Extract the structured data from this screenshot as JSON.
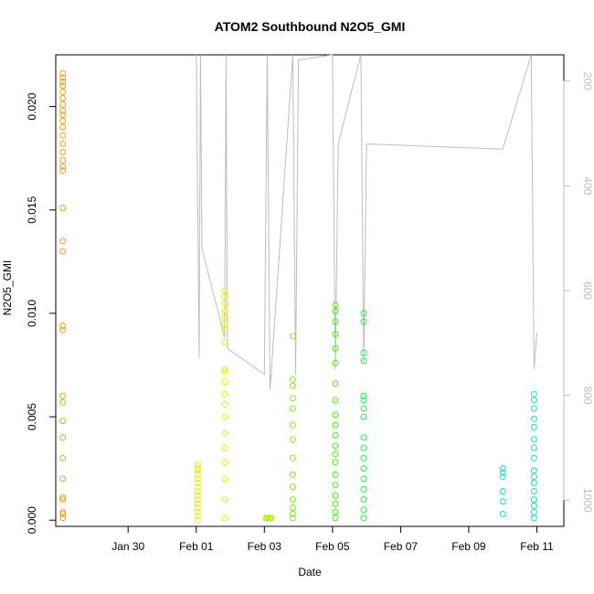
{
  "chart_data": {
    "type": "scatter",
    "title": "ATOM2 Southbound N2O5_GMI",
    "xlabel": "Date",
    "ylabel": "N2O5_GMI",
    "xlim": [
      "2017-01-27T21:00",
      "2017-02-11T19:00"
    ],
    "ylim": [
      -0.0003,
      0.0225
    ],
    "x_ticks": [
      "Jan 30",
      "Feb 01",
      "Feb 03",
      "Feb 05",
      "Feb 07",
      "Feb 09",
      "Feb 11"
    ],
    "x_tick_dates": [
      "2017-01-30",
      "2017-02-01",
      "2017-02-03",
      "2017-02-05",
      "2017-02-07",
      "2017-02-09",
      "2017-02-11"
    ],
    "y_ticks": [
      0.0,
      0.005,
      0.01,
      0.015,
      0.02
    ],
    "y_tick_labels": [
      "0.000",
      "0.005",
      "0.010",
      "0.015",
      "0.020"
    ],
    "y2_ticks": [
      200,
      400,
      600,
      800,
      1000
    ],
    "y2_reversed": true,
    "y2_lim": [
      1050,
      150
    ],
    "grid": false,
    "point_style": "open circle, color encodes time (orange to green to cyan)",
    "series": [
      {
        "color": "#f39c12",
        "x": [
          "2017-01-28T02:00",
          "2017-01-28T02:00",
          "2017-01-28T02:00",
          "2017-01-28T02:00",
          "2017-01-28T02:00",
          "2017-01-28T02:00",
          "2017-01-28T02:00",
          "2017-01-28T02:00",
          "2017-01-28T02:00",
          "2017-01-28T02:00",
          "2017-01-28T02:00",
          "2017-01-28T02:00",
          "2017-01-28T02:00",
          "2017-01-28T02:00",
          "2017-01-28T02:00",
          "2017-01-28T02:00",
          "2017-01-28T02:00",
          "2017-01-28T02:00",
          "2017-01-28T02:00",
          "2017-01-28T02:00",
          "2017-01-28T02:00",
          "2017-01-28T02:00",
          "2017-01-28T02:00",
          "2017-01-28T02:00",
          "2017-01-28T02:00",
          "2017-01-28T02:00",
          "2017-01-28T02:00",
          "2017-01-28T02:00"
        ],
        "y": [
          0.0216,
          0.0214,
          0.0212,
          0.021,
          0.0207,
          0.0204,
          0.0201,
          0.0198,
          0.0196,
          0.0193,
          0.019,
          0.0186,
          0.0182,
          0.0178,
          0.0174,
          0.0171,
          0.0169,
          0.0151,
          0.0135,
          0.013,
          0.0094,
          0.0092,
          0.006,
          0.0057,
          0.0048,
          0.004,
          0.003,
          0.002
        ]
      },
      {
        "color": "#f39c12",
        "x": [
          "2017-01-28T02:00",
          "2017-01-28T02:00",
          "2017-01-28T02:00",
          "2017-01-28T02:00",
          "2017-01-28T02:00"
        ],
        "y": [
          0.0011,
          0.001,
          0.0004,
          0.0003,
          0.0001
        ]
      },
      {
        "color": "#e8f000",
        "x": [
          "2017-02-01T01:00",
          "2017-02-01T01:00",
          "2017-02-01T01:00",
          "2017-02-01T01:00",
          "2017-02-01T01:00",
          "2017-02-01T01:00",
          "2017-02-01T01:00",
          "2017-02-01T01:00",
          "2017-02-01T01:00",
          "2017-02-01T01:00",
          "2017-02-01T01:00",
          "2017-02-01T01:00",
          "2017-02-01T01:00",
          "2017-02-01T01:00",
          "2017-02-01T01:00"
        ],
        "y": [
          0.0027,
          0.0025,
          0.0024,
          0.0022,
          0.002,
          0.0018,
          0.0016,
          0.0014,
          0.0012,
          0.001,
          0.0008,
          0.0006,
          0.0004,
          0.0002,
          0.0
        ]
      },
      {
        "color": "#e0f200",
        "x": [
          "2017-02-01T20:00",
          "2017-02-01T20:00",
          "2017-02-01T20:00",
          "2017-02-01T20:00",
          "2017-02-01T20:00",
          "2017-02-01T20:00",
          "2017-02-01T20:00",
          "2017-02-01T20:00",
          "2017-02-01T20:00",
          "2017-02-01T20:00",
          "2017-02-01T20:00",
          "2017-02-01T20:00",
          "2017-02-01T20:00",
          "2017-02-01T20:00",
          "2017-02-01T20:00",
          "2017-02-01T20:00",
          "2017-02-01T20:00",
          "2017-02-01T20:00",
          "2017-02-01T20:00",
          "2017-02-01T20:00"
        ],
        "y": [
          0.0111,
          0.0108,
          0.0105,
          0.0101,
          0.0098,
          0.0095,
          0.0092,
          0.0086,
          0.0073,
          0.0072,
          0.0067,
          0.0061,
          0.0056,
          0.005,
          0.0042,
          0.0035,
          0.0028,
          0.002,
          0.001,
          0.0001
        ]
      },
      {
        "color": "#a8f000",
        "x": [
          "2017-02-03T01:00",
          "2017-02-03T02:00",
          "2017-02-03T03:00",
          "2017-02-03T04:00",
          "2017-02-03T05:00"
        ],
        "y": [
          0.0001,
          0.0001,
          0.0001,
          0.0001,
          0.0001
        ]
      },
      {
        "color": "#7cf000",
        "x": [
          "2017-02-03T20:00",
          "2017-02-03T20:00",
          "2017-02-03T20:00",
          "2017-02-03T20:00",
          "2017-02-03T20:00",
          "2017-02-03T20:00",
          "2017-02-03T20:00",
          "2017-02-03T20:00",
          "2017-02-03T20:00",
          "2017-02-03T20:00",
          "2017-02-03T20:00",
          "2017-02-03T20:00",
          "2017-02-03T20:00",
          "2017-02-03T20:00"
        ],
        "y": [
          0.0089,
          0.0068,
          0.0065,
          0.0059,
          0.0054,
          0.0046,
          0.0039,
          0.003,
          0.0022,
          0.0016,
          0.001,
          0.0006,
          0.0003,
          0.0001
        ]
      },
      {
        "color": "#3cf000",
        "x": [
          "2017-02-05T02:00",
          "2017-02-05T02:00",
          "2017-02-05T02:00",
          "2017-02-05T02:00",
          "2017-02-05T02:00",
          "2017-02-05T02:00",
          "2017-02-05T02:00",
          "2017-02-05T02:00",
          "2017-02-05T02:00",
          "2017-02-05T02:00",
          "2017-02-05T02:00",
          "2017-02-05T02:00",
          "2017-02-05T02:00",
          "2017-02-05T02:00",
          "2017-02-05T02:00",
          "2017-02-05T02:00",
          "2017-02-05T02:00",
          "2017-02-05T02:00",
          "2017-02-05T02:00",
          "2017-02-05T02:00"
        ],
        "y": [
          0.0104,
          0.0101,
          0.0096,
          0.009,
          0.0083,
          0.0076,
          0.0066,
          0.0058,
          0.0051,
          0.0046,
          0.0041,
          0.0036,
          0.0032,
          0.0028,
          0.0022,
          0.0017,
          0.0012,
          0.0008,
          0.0004,
          0.0001
        ]
      },
      {
        "color": "#1cf040",
        "x": [
          "2017-02-05T22:00",
          "2017-02-05T22:00",
          "2017-02-05T22:00",
          "2017-02-05T22:00",
          "2017-02-05T22:00",
          "2017-02-05T22:00",
          "2017-02-05T22:00",
          "2017-02-05T22:00",
          "2017-02-05T22:00",
          "2017-02-05T22:00",
          "2017-02-05T22:00",
          "2017-02-05T22:00",
          "2017-02-05T22:00",
          "2017-02-05T22:00",
          "2017-02-05T22:00",
          "2017-02-05T22:00",
          "2017-02-05T22:00"
        ],
        "y": [
          0.01,
          0.0096,
          0.0081,
          0.0077,
          0.006,
          0.0058,
          0.0054,
          0.005,
          0.004,
          0.0035,
          0.003,
          0.0025,
          0.002,
          0.0015,
          0.001,
          0.0005,
          0.0001
        ]
      },
      {
        "color": "#00e8a8",
        "x": [
          "2017-02-10T00:00",
          "2017-02-10T00:00",
          "2017-02-10T00:00",
          "2017-02-10T00:00",
          "2017-02-10T00:00",
          "2017-02-10T00:00"
        ],
        "y": [
          0.0025,
          0.0023,
          0.0021,
          0.0014,
          0.0009,
          0.0003
        ]
      },
      {
        "color": "#00e8c8",
        "x": [
          "2017-02-10T22:00",
          "2017-02-10T22:00",
          "2017-02-10T22:00",
          "2017-02-10T22:00",
          "2017-02-10T22:00",
          "2017-02-10T22:00",
          "2017-02-10T22:00",
          "2017-02-10T22:00",
          "2017-02-10T22:00",
          "2017-02-10T22:00",
          "2017-02-10T22:00",
          "2017-02-10T22:00",
          "2017-02-10T22:00",
          "2017-02-10T22:00",
          "2017-02-10T22:00",
          "2017-02-10T22:00"
        ],
        "y": [
          0.0061,
          0.0058,
          0.0054,
          0.0049,
          0.0045,
          0.0039,
          0.0035,
          0.003,
          0.0024,
          0.0021,
          0.0018,
          0.0014,
          0.001,
          0.0007,
          0.0004,
          0.0001
        ]
      }
    ],
    "pressure_series": {
      "color": "#bdbdbd",
      "name": "",
      "x": [
        "2017-02-01T00:00",
        "2017-02-01T02:00",
        "2017-02-01T03:00",
        "2017-02-01T04:00",
        "2017-02-01T20:00",
        "2017-02-01T21:00",
        "2017-02-01T22:00",
        "2017-02-03T00:00",
        "2017-02-03T02:00",
        "2017-02-03T04:00",
        "2017-02-03T20:00",
        "2017-02-03T22:00",
        "2017-02-04T00:00",
        "2017-02-05T00:00",
        "2017-02-05T02:00",
        "2017-02-05T04:00",
        "2017-02-05T20:00",
        "2017-02-05T22:00",
        "2017-02-06T00:00",
        "2017-02-10T00:00",
        "2017-02-10T20:00",
        "2017-02-10T22:00",
        "2017-02-11T00:00"
      ],
      "y": [
        150,
        730,
        150,
        520,
        690,
        150,
        710,
        760,
        150,
        790,
        150,
        760,
        160,
        150,
        750,
        320,
        150,
        740,
        320,
        330,
        150,
        750,
        680
      ]
    }
  }
}
